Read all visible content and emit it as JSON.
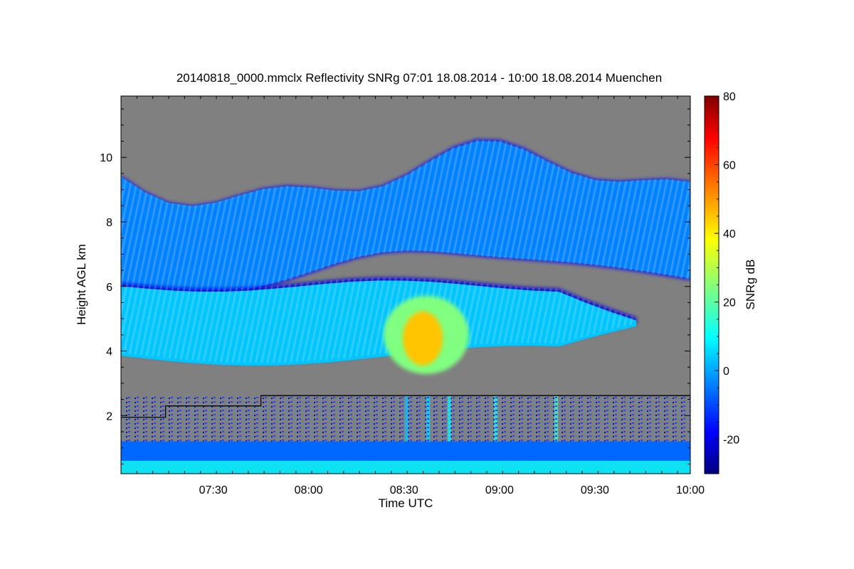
{
  "chart_data": {
    "type": "heatmap",
    "title": "20140818_0000.mmclx Reflectivity SNRg   07:01 18.08.2014 - 10:00 18.08.2014 Muenchen",
    "xlabel": "Time UTC",
    "ylabel": "Height AGL km",
    "x_ticks": [
      "07:30",
      "08:00",
      "08:30",
      "09:00",
      "09:30",
      "10:00"
    ],
    "xlim": [
      "07:01",
      "10:00"
    ],
    "y_ticks": [
      2,
      4,
      6,
      8,
      10
    ],
    "ylim": [
      0.2,
      11.9
    ],
    "colorbar": {
      "label": "SNRg dB",
      "range": [
        -30,
        80
      ],
      "ticks": [
        -20,
        0,
        20,
        40,
        60,
        80
      ],
      "colormap": "jet"
    },
    "background_color": "#808080",
    "features": [
      {
        "name": "mid-level cloud layer",
        "start": "07:01",
        "end": "09:43",
        "base_km": 3.5,
        "top_km": 6.1,
        "peak_snr_db": 45,
        "peak_time": "08:37",
        "peak_height_km": 4.5
      },
      {
        "name": "upper cloud layer",
        "start": "07:01",
        "end": "10:00",
        "base_km": 6.0,
        "top_km": 10.3,
        "typical_snr_db": 0
      },
      {
        "name": "boundary layer echoes",
        "start": "07:01",
        "end": "10:00",
        "base_km": 0.2,
        "top_km": 2.6,
        "typical_snr_db": 5
      }
    ],
    "series": [
      {
        "line_color": "#000000",
        "x": [
          "07:01",
          "07:15",
          "07:15",
          "07:45",
          "07:45",
          "10:00"
        ],
        "y": [
          1.95,
          1.95,
          2.3,
          2.3,
          2.62,
          2.62
        ]
      }
    ],
    "legend": "none"
  }
}
